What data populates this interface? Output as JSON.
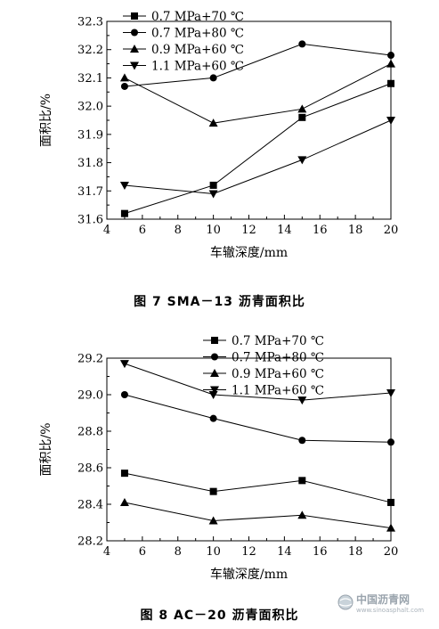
{
  "chart_data": [
    {
      "type": "line",
      "title": "",
      "caption": "图 7   SMA－13 沥青面积比",
      "xlabel": "车辙深度/mm",
      "ylabel": "面积比/%",
      "xlim": [
        4,
        20
      ],
      "ylim": [
        31.6,
        32.3
      ],
      "xticks": [
        "4",
        "6",
        "8",
        "10",
        "12",
        "14",
        "16",
        "18",
        "20"
      ],
      "yticks": [
        "31.6",
        "31.7",
        "31.8",
        "31.9",
        "32.0",
        "32.1",
        "32.2",
        "32.3"
      ],
      "x": [
        5,
        10,
        15,
        20
      ],
      "grid": false,
      "legend_position": "top-left",
      "series": [
        {
          "name": "0.7 MPa+70 ℃",
          "marker": "square",
          "values": [
            31.62,
            31.72,
            31.96,
            32.08
          ]
        },
        {
          "name": "0.7 MPa+80 ℃",
          "marker": "circle",
          "values": [
            32.07,
            32.1,
            32.22,
            32.18
          ]
        },
        {
          "name": "0.9 MPa+60 ℃",
          "marker": "triangle-up",
          "values": [
            32.1,
            31.94,
            31.99,
            32.15
          ]
        },
        {
          "name": "1.1 MPa+60 ℃",
          "marker": "triangle-down",
          "values": [
            31.72,
            31.69,
            31.81,
            31.95
          ]
        }
      ]
    },
    {
      "type": "line",
      "title": "",
      "caption": "图 8   AC－20 沥青面积比",
      "xlabel": "车辙深度/mm",
      "ylabel": "面积比/%",
      "xlim": [
        4,
        20
      ],
      "ylim": [
        28.2,
        29.2
      ],
      "xticks": [
        "4",
        "6",
        "8",
        "10",
        "12",
        "14",
        "16",
        "18",
        "20"
      ],
      "yticks": [
        "28.2",
        "28.4",
        "28.6",
        "28.8",
        "29.0",
        "29.2"
      ],
      "x": [
        5,
        10,
        15,
        20
      ],
      "grid": false,
      "legend_position": "top-right",
      "series": [
        {
          "name": "0.7 MPa+70 ℃",
          "marker": "square",
          "values": [
            28.57,
            28.47,
            28.53,
            28.41
          ]
        },
        {
          "name": "0.7 MPa+80 ℃",
          "marker": "circle",
          "values": [
            29.0,
            28.87,
            28.75,
            28.74
          ]
        },
        {
          "name": "0.9 MPa+60 ℃",
          "marker": "triangle-up",
          "values": [
            28.41,
            28.31,
            28.34,
            28.27
          ]
        },
        {
          "name": "1.1 MPa+60 ℃",
          "marker": "triangle-down",
          "values": [
            29.17,
            29.0,
            28.97,
            29.01
          ]
        }
      ]
    }
  ],
  "watermark": {
    "text": "中国沥青网",
    "url": "www.sinoasphalt.com"
  }
}
